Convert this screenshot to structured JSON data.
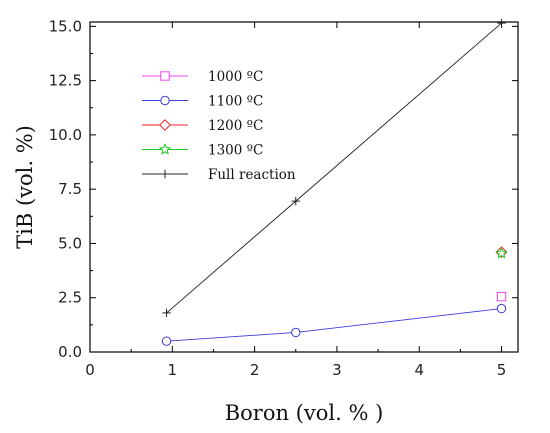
{
  "chart_data": {
    "type": "scatter",
    "xlabel": "Boron (vol. % )",
    "ylabel": "TiB (vol. %)",
    "xlim": [
      0,
      5.2
    ],
    "ylim": [
      0,
      15.2
    ],
    "x_ticks": [
      0,
      1,
      2,
      3,
      4,
      5
    ],
    "x_tick_labels": [
      "0",
      "1",
      "2",
      "3",
      "4",
      "5"
    ],
    "y_ticks": [
      0,
      2.5,
      5,
      7.5,
      10,
      12.5,
      15
    ],
    "y_tick_labels": [
      "0.0",
      "2.5",
      "5.0",
      "7.5",
      "10.0",
      "12.5",
      "15.0"
    ],
    "grid": false,
    "legend_position": "top-left",
    "series": [
      {
        "name": "1000 ºC",
        "color": "#ee44ee",
        "marker": "square",
        "x": [
          5
        ],
        "y": [
          2.55
        ]
      },
      {
        "name": "1100 ºC",
        "color": "#3b3bd8",
        "marker": "circle",
        "line": true,
        "x": [
          0.93,
          2.5,
          5
        ],
        "y": [
          0.5,
          0.9,
          2.0
        ]
      },
      {
        "name": "1200 ºC",
        "color": "#ee2222",
        "marker": "diamond",
        "x": [
          5
        ],
        "y": [
          4.6
        ]
      },
      {
        "name": "1300 ºC",
        "color": "#22cc22",
        "marker": "star",
        "x": [
          5
        ],
        "y": [
          4.55
        ]
      },
      {
        "name": "Full reaction",
        "color": "#222222",
        "marker": "plus",
        "line": true,
        "x": [
          0.93,
          2.5,
          5
        ],
        "y": [
          1.8,
          6.95,
          15.15
        ]
      }
    ]
  }
}
